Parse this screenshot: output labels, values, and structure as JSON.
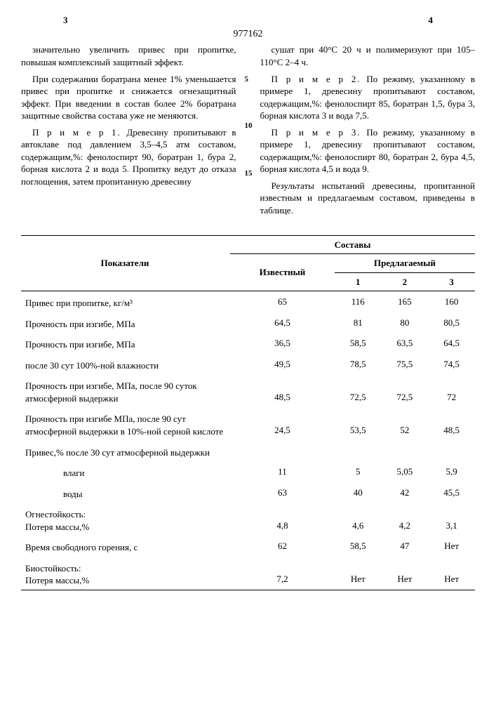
{
  "patent_number": "977162",
  "page_col_left": "3",
  "page_col_right": "4",
  "left_col": {
    "p1": "значительно увеличить привес при пропитке, повышая комплексный защитный эффект.",
    "p2": "При содержании боратрана менее 1% уменьшается привес при пропитке и снижается огнезащитный эффект. При введении в состав более 2% боратрана защитные свойства состава уже не меняются.",
    "p3a": "П р и м е р 1.",
    "p3b": " Древесину пропитывают в автоклаве под давлением 3,5–4,5 атм составом, содержащим,%: фенолоспирт 90, боратран 1, бура 2, борная кислота 2 и вода 5. Пропитку ведут до отказа поглощения, затем пропитанную  древесину"
  },
  "right_col": {
    "p1": "сушат при 40°С 20 ч и полимеризуют при 105–110°С 2–4 ч.",
    "p2a": "П р и м е р 2.",
    "p2b": " По режиму, указанному в примере 1, древесину пропитывают составом, содержащим,%: фенолоспирт 85, боратран 1,5, бура 3, борная кислота 3 и вода 7,5.",
    "p3a": "П р и м е р 3.",
    "p3b": " По режиму, указанному в примере 1, древесину пропитывают составом, содержащим,%: фенолоспирт 80, боратран 2, бура 4,5, борная кислота 4,5 и вода 9.",
    "p4": "Результаты испытаний древесины, пропитанной известным и предлагаемым составом, приведены в таблице."
  },
  "table": {
    "head": {
      "indicators": "Показатели",
      "compositions": "Составы",
      "known": "Известный",
      "proposed": "Предлагаемый",
      "c1": "1",
      "c2": "2",
      "c3": "3"
    },
    "rows": [
      {
        "label": "Привес при пропитке, кг/м³",
        "v": [
          "65",
          "116",
          "165",
          "160"
        ]
      },
      {
        "label": "Прочность при изгибе, МПа",
        "v": [
          "64,5",
          "81",
          "80",
          "80,5"
        ]
      },
      {
        "label": "Прочность при изгибе, МПа",
        "v": [
          "36,5",
          "58,5",
          "63,5",
          "64,5"
        ]
      },
      {
        "label": "после 30 сут 100%-ной влажности",
        "v": [
          "49,5",
          "78,5",
          "75,5",
          "74,5"
        ]
      },
      {
        "label": "Прочность при изгибе, МПа, после 90 суток атмосферной выдержки",
        "v": [
          "48,5",
          "72,5",
          "72,5",
          "72"
        ]
      },
      {
        "label": "Прочность при изгибе МПа, после 90 сут атмосферной выдержки в 10%-ной серной кислоте",
        "v": [
          "24,5",
          "53,5",
          "52",
          "48,5"
        ]
      },
      {
        "label": "Привес,% после 30 сут атмосферной выдержки",
        "v": [
          "",
          "",
          "",
          ""
        ]
      },
      {
        "label": "влаги",
        "indent": true,
        "v": [
          "11",
          "5",
          "5,05",
          "5,9"
        ]
      },
      {
        "label": "воды",
        "indent": true,
        "v": [
          "63",
          "40",
          "42",
          "45,5"
        ]
      },
      {
        "label": "Огнестойкость:\nПотеря массы,%",
        "v": [
          "4,8",
          "4,6",
          "4,2",
          "3,1"
        ]
      },
      {
        "label": "Время свободного горения, с",
        "v": [
          "62",
          "58,5",
          "47",
          "Нет"
        ]
      },
      {
        "label": "Биостойкость:\nПотеря массы,%",
        "v": [
          "7,2",
          "Нет",
          "Нет",
          "Нет"
        ]
      }
    ]
  }
}
